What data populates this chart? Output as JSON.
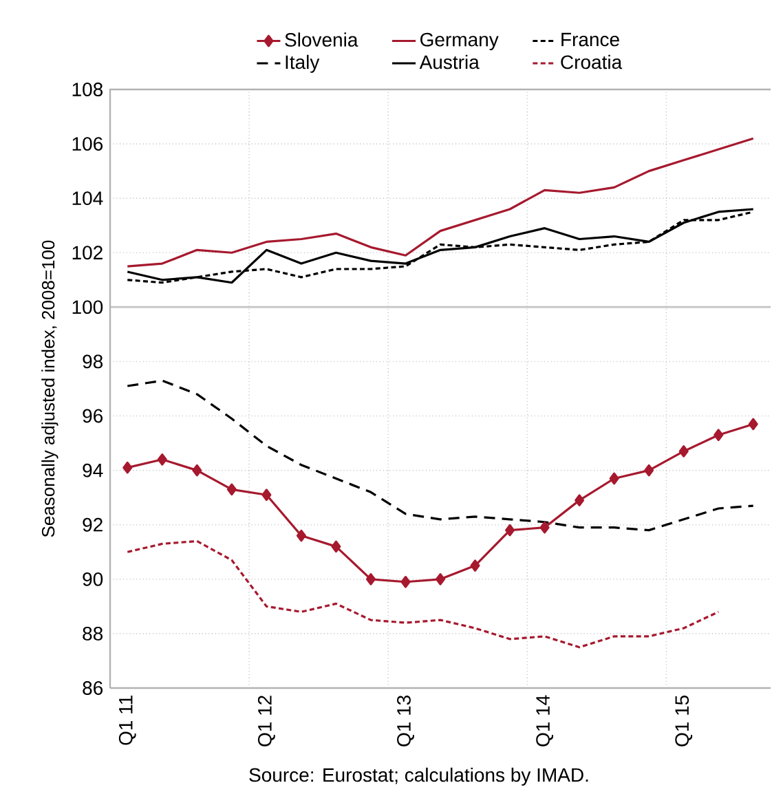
{
  "chart_data": {
    "type": "line",
    "categories": [
      "Q1 11",
      null,
      null,
      null,
      "Q1 12",
      null,
      null,
      null,
      "Q1 13",
      null,
      null,
      null,
      "Q1 14",
      null,
      null,
      null,
      "Q1 15",
      null,
      null
    ],
    "ylabel": "Seasonally adjusted index, 2008=100",
    "annotations": [
      "Source: Eurostat; calculations by IMAD."
    ],
    "ylim": [
      86,
      108
    ],
    "yticks": [
      86,
      88,
      90,
      92,
      94,
      96,
      98,
      100,
      102,
      104,
      106,
      108
    ],
    "grid": true,
    "legend": "top",
    "ref_lines": [
      {
        "axis": "y",
        "value": 100,
        "color": "#c8c8c8"
      }
    ],
    "series": [
      {
        "name": "Slovenia",
        "color": "#a6192e",
        "marker": "diamond",
        "line_style": "solid",
        "values": [
          94.1,
          94.4,
          94.0,
          93.3,
          93.1,
          91.6,
          91.2,
          90.0,
          89.9,
          90.0,
          90.5,
          91.8,
          91.9,
          92.9,
          93.7,
          94.0,
          94.7,
          95.3,
          95.7
        ]
      },
      {
        "name": "Germany",
        "color": "#a6192e",
        "marker": "none",
        "line_style": "solid",
        "values": [
          101.5,
          101.6,
          102.1,
          102.0,
          102.4,
          102.5,
          102.7,
          102.2,
          101.9,
          102.8,
          103.2,
          103.6,
          104.3,
          104.2,
          104.4,
          105.0,
          105.4,
          105.8,
          106.2
        ]
      },
      {
        "name": "France",
        "color": "#000000",
        "marker": "none",
        "line_style": "dotted",
        "values": [
          101.0,
          100.9,
          101.1,
          101.3,
          101.4,
          101.1,
          101.4,
          101.4,
          101.5,
          102.3,
          102.2,
          102.3,
          102.2,
          102.1,
          102.3,
          102.4,
          103.2,
          103.2,
          103.5
        ]
      },
      {
        "name": "Italy",
        "color": "#000000",
        "marker": "none",
        "line_style": "dashed",
        "values": [
          97.1,
          97.3,
          96.8,
          95.9,
          94.9,
          94.2,
          93.7,
          93.2,
          92.4,
          92.2,
          92.3,
          92.2,
          92.1,
          91.9,
          91.9,
          91.8,
          92.2,
          92.6,
          92.7
        ]
      },
      {
        "name": "Austria",
        "color": "#000000",
        "marker": "none",
        "line_style": "solid",
        "values": [
          101.3,
          101.0,
          101.1,
          100.9,
          102.1,
          101.6,
          102.0,
          101.7,
          101.6,
          102.1,
          102.2,
          102.6,
          102.9,
          102.5,
          102.6,
          102.4,
          103.1,
          103.5,
          103.6
        ]
      },
      {
        "name": "Croatia",
        "color": "#a6192e",
        "marker": "none",
        "line_style": "dotted",
        "values": [
          91.0,
          91.3,
          91.4,
          90.7,
          89.0,
          88.8,
          89.1,
          88.5,
          88.4,
          88.5,
          88.2,
          87.8,
          87.9,
          87.5,
          87.9,
          87.9,
          88.2,
          88.8,
          null
        ]
      }
    ]
  }
}
